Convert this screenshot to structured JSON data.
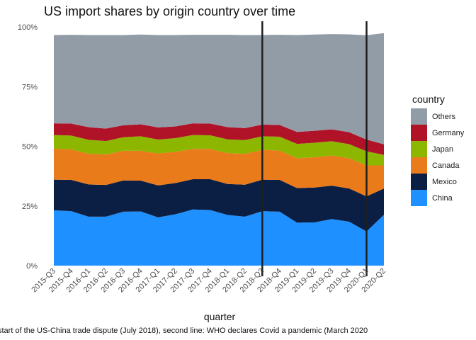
{
  "chart_data": {
    "type": "area",
    "stacked": true,
    "title": "US import shares by origin country over time",
    "xlabel": "quarter",
    "ylabel": "",
    "y_ticks": [
      "0%",
      "25%",
      "50%",
      "75%",
      "100%"
    ],
    "ylim": [
      0,
      1
    ],
    "grid": false,
    "legend": {
      "title": "country",
      "position": "right"
    },
    "x": [
      "2015-Q3",
      "2015-Q4",
      "2016-Q1",
      "2016-Q2",
      "2016-Q3",
      "2016-Q4",
      "2017-Q1",
      "2017-Q2",
      "2017-Q3",
      "2017-Q4",
      "2018-Q1",
      "2018-Q2",
      "2018-Q3",
      "2018-Q4",
      "2019-Q1",
      "2019-Q2",
      "2019-Q3",
      "2019-Q4",
      "2020-Q1",
      "2020-Q2"
    ],
    "series": [
      {
        "name": "China",
        "color": "#1e90ff",
        "values": [
          0.232,
          0.228,
          0.205,
          0.205,
          0.226,
          0.227,
          0.202,
          0.215,
          0.235,
          0.233,
          0.212,
          0.205,
          0.228,
          0.226,
          0.18,
          0.181,
          0.195,
          0.184,
          0.143,
          0.213
        ]
      },
      {
        "name": "Mexico",
        "color": "#0b1f45",
        "values": [
          0.128,
          0.131,
          0.135,
          0.133,
          0.131,
          0.129,
          0.134,
          0.131,
          0.127,
          0.129,
          0.13,
          0.134,
          0.132,
          0.133,
          0.145,
          0.146,
          0.14,
          0.139,
          0.147,
          0.11
        ]
      },
      {
        "name": "Canada",
        "color": "#ea7b1b",
        "values": [
          0.13,
          0.128,
          0.129,
          0.127,
          0.124,
          0.125,
          0.134,
          0.131,
          0.127,
          0.127,
          0.129,
          0.129,
          0.125,
          0.123,
          0.125,
          0.127,
          0.126,
          0.127,
          0.13,
          0.097
        ]
      },
      {
        "name": "Japan",
        "color": "#8db600",
        "values": [
          0.057,
          0.058,
          0.058,
          0.057,
          0.057,
          0.061,
          0.058,
          0.057,
          0.058,
          0.057,
          0.058,
          0.058,
          0.057,
          0.058,
          0.06,
          0.061,
          0.06,
          0.059,
          0.059,
          0.044
        ]
      },
      {
        "name": "Germany",
        "color": "#b01228",
        "values": [
          0.049,
          0.05,
          0.053,
          0.052,
          0.05,
          0.05,
          0.051,
          0.049,
          0.049,
          0.049,
          0.051,
          0.05,
          0.049,
          0.049,
          0.05,
          0.05,
          0.05,
          0.05,
          0.049,
          0.044
        ]
      },
      {
        "name": "Others",
        "color": "#929ca6",
        "values": [
          0.37,
          0.372,
          0.386,
          0.392,
          0.378,
          0.376,
          0.387,
          0.383,
          0.371,
          0.372,
          0.387,
          0.39,
          0.375,
          0.378,
          0.406,
          0.403,
          0.399,
          0.41,
          0.437,
          0.466
        ]
      }
    ],
    "legend_order": [
      "Others",
      "Germany",
      "Japan",
      "Canada",
      "Mexico",
      "China"
    ],
    "vlines": [
      {
        "x": "2018-Q3",
        "color": "#1f1f1f"
      },
      {
        "x": "2020-Q1",
        "color": "#1f1f1f"
      }
    ],
    "caption": "start of the US-China trade dispute (July 2018), second line: WHO declares Covid a pandemic (March 2020"
  }
}
